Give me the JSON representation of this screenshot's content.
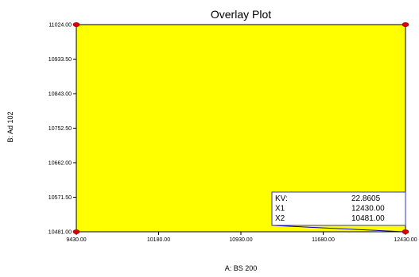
{
  "chart_data": {
    "type": "area",
    "title": "Overlay Plot",
    "xlabel": "A: BS 200",
    "ylabel": "B: Ad 102",
    "xlim": [
      9430.0,
      12430.0
    ],
    "ylim": [
      10481.0,
      11024.0
    ],
    "x_ticks": [
      "9430.00",
      "10180.00",
      "10930.00",
      "11680.00",
      "12430.00"
    ],
    "y_ticks": [
      "10481.00",
      "10571.50",
      "10662.00",
      "10752.50",
      "10843.00",
      "10933.50",
      "11024.00"
    ],
    "fill_color": "#ffff00",
    "grid": false,
    "design_points": [
      {
        "x": 9430.0,
        "y": 11024.0
      },
      {
        "x": 12430.0,
        "y": 11024.0
      },
      {
        "x": 9430.0,
        "y": 10481.0
      },
      {
        "x": 12430.0,
        "y": 10481.0
      }
    ],
    "point_color": "#e00000",
    "flag": {
      "x": 12430.0,
      "y": 10481.0,
      "rows": [
        {
          "label": "KV:",
          "value": "22.8605"
        },
        {
          "label": "X1",
          "value": "12430.00"
        },
        {
          "label": "X2",
          "value": "10481.00"
        }
      ]
    }
  }
}
